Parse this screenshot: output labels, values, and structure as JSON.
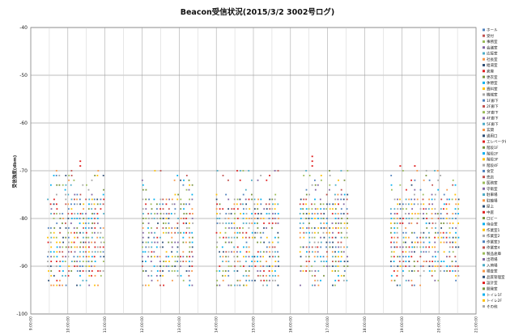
{
  "chart_data": {
    "type": "scatter",
    "title": "Beacon受信状況(2015/3/2 3002号ログ)",
    "ylabel": "受信強度(dbm)",
    "ylim": [
      -100,
      -40
    ],
    "yticks": [
      -40,
      -50,
      -60,
      -70,
      -80,
      -90,
      -100
    ],
    "xticks": [
      "9:00:00",
      "10:00:00",
      "11:00:00",
      "12:00:00",
      "13:00:00",
      "14:00:00",
      "15:00:00",
      "16:00:00",
      "17:00:00",
      "18:00:00",
      "19:00:00",
      "20:00:00",
      "21:00:00"
    ],
    "x_range_hours": [
      9,
      21
    ],
    "grid": true,
    "legend_position": "right",
    "colors": [
      "#4f81bd",
      "#c0504d",
      "#9bbb59",
      "#8064a2",
      "#4bacc6",
      "#f79646",
      "#2c4d75",
      "#e02020",
      "#77933c",
      "#00b0f0",
      "#ffc000",
      "#a6a6a6"
    ],
    "clusters": [
      {
        "start_hour": 9.45,
        "end_hour": 10.95,
        "peak_dbm": -68
      },
      {
        "start_hour": 12.0,
        "end_hour": 13.35,
        "peak_dbm": -70
      },
      {
        "start_hour": 14.0,
        "end_hour": 15.65,
        "peak_dbm": -72
      },
      {
        "start_hour": 16.25,
        "end_hour": 17.55,
        "peak_dbm": -67
      },
      {
        "start_hour": 18.7,
        "end_hour": 20.55,
        "peak_dbm": -69
      }
    ],
    "level_range_dbm": [
      -94,
      -70
    ],
    "legend": [
      "ホール",
      "受付",
      "事務室",
      "会議室",
      "応接室",
      "社長室",
      "給湯室",
      "倉庫",
      "更衣室",
      "休憩室",
      "資料室",
      "機械室",
      "1F廊下",
      "2F廊下",
      "3F廊下",
      "4F廊下",
      "5F廊下",
      "玄関",
      "通用口",
      "エレベータ前",
      "階段1F",
      "階段2F",
      "階段3F",
      "階段4F",
      "食堂",
      "売店",
      "医務室",
      "守衛室",
      "駐車場",
      "駐輪場",
      "屋上",
      "中庭",
      "ロビー",
      "待合室",
      "作業室1",
      "作業室2",
      "作業室3",
      "作業室4",
      "製品倉庫",
      "出荷場",
      "入荷場",
      "検査室",
      "品質管理室",
      "設計室",
      "開発室",
      "トイレ1F",
      "トイレ2F",
      "その他"
    ]
  }
}
